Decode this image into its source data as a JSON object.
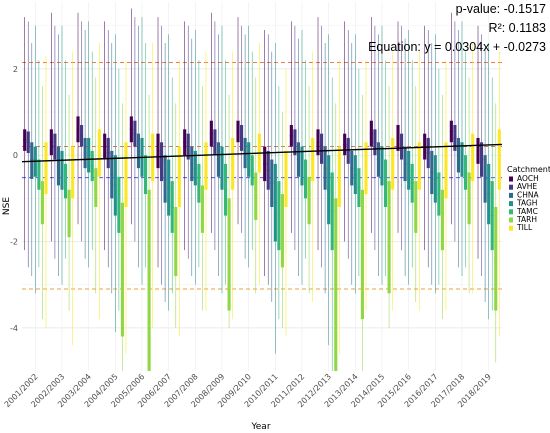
{
  "chart_data": {
    "type": "boxplot",
    "xlabel": "Year",
    "ylabel": "NSE",
    "ylim": [
      -5.0,
      3.55
    ],
    "y_ticks": [
      -4,
      -2,
      0,
      2
    ],
    "grid": true,
    "legend_position": "right",
    "legend_title": "Catchment",
    "categories": [
      "2001/2002",
      "2002/2003",
      "2003/2004",
      "2004/2005",
      "2005/2006",
      "2006/2007",
      "2007/2008",
      "2008/2009",
      "2009/2010",
      "2010/2011",
      "2011/2012",
      "2012/2013",
      "2013/2014",
      "2014/2015",
      "2015/2016",
      "2016/2017",
      "2017/2018",
      "2018/2019"
    ],
    "series": [
      {
        "name": "AOCH",
        "color": "#440154"
      },
      {
        "name": "AVHE",
        "color": "#443983"
      },
      {
        "name": "CHNA",
        "color": "#31688e"
      },
      {
        "name": "TAGH",
        "color": "#21918c"
      },
      {
        "name": "TAMC",
        "color": "#35b779"
      },
      {
        "name": "TARH",
        "color": "#90d743"
      },
      {
        "name": "TILL",
        "color": "#fde725"
      }
    ],
    "stats": {
      "p_value_text": "p-value: -0.1517",
      "r2_text": "R²: 0.1183",
      "equation_text": "Equation: y = 0.0304x + -0.0273"
    },
    "trend_line": {
      "slope": 0.0304,
      "intercept": -0.0273,
      "color": "#000000",
      "y_start": -0.15,
      "y_end": 0.25
    },
    "reference_lines": [
      {
        "y": 2.15,
        "color": "#e8693a",
        "style": "dashed"
      },
      {
        "y": 0.2,
        "color": "#e05a4a",
        "style": "dashed"
      },
      {
        "y": -0.52,
        "color": "#3a3ad8",
        "style": "dashed"
      },
      {
        "y": -3.1,
        "color": "#e8a03a",
        "style": "dashed"
      }
    ],
    "boxes": [
      [
        [
          0.6,
          0.1,
          0.35,
          -2.2,
          3.2
        ],
        [
          0.55,
          0.05,
          0.3,
          -2.6,
          3.1
        ],
        [
          0.3,
          -0.55,
          -0.1,
          -2.8,
          2.6
        ],
        [
          0.2,
          -0.5,
          -0.1,
          -3.2,
          3.0
        ],
        [
          -0.1,
          -0.8,
          -0.45,
          -2.6,
          2.2
        ],
        [
          -0.6,
          -1.6,
          -1.1,
          -3.8,
          1.6
        ],
        [
          0.3,
          -0.9,
          -0.25,
          -4.0,
          2.3
        ]
      ],
      [
        [
          0.6,
          0.0,
          0.3,
          -2.0,
          3.3
        ],
        [
          0.5,
          -0.1,
          0.2,
          -2.4,
          3.0
        ],
        [
          0.2,
          -0.7,
          -0.25,
          -2.8,
          2.8
        ],
        [
          0.1,
          -0.8,
          -0.35,
          -3.0,
          3.0
        ],
        [
          -0.2,
          -1.0,
          -0.6,
          -2.4,
          2.2
        ],
        [
          -0.8,
          -1.9,
          -1.35,
          -3.6,
          1.4
        ],
        [
          0.2,
          -1.0,
          -0.4,
          -4.4,
          2.4
        ]
      ],
      [
        [
          0.9,
          0.3,
          0.6,
          -1.6,
          3.3
        ],
        [
          0.7,
          0.2,
          0.45,
          -2.0,
          3.1
        ],
        [
          0.4,
          -0.3,
          0.05,
          -2.4,
          2.9
        ],
        [
          0.4,
          -0.4,
          0.0,
          -2.6,
          3.1
        ],
        [
          0.1,
          -0.6,
          -0.25,
          -2.2,
          2.4
        ],
        [
          -0.3,
          -1.2,
          -0.75,
          -3.2,
          1.8
        ],
        [
          0.6,
          -0.5,
          0.05,
          -3.8,
          2.6
        ]
      ],
      [
        [
          0.5,
          -0.1,
          0.2,
          -2.2,
          3.1
        ],
        [
          0.4,
          -0.3,
          0.05,
          -2.6,
          2.9
        ],
        [
          0.1,
          -1.0,
          -0.45,
          -3.2,
          2.6
        ],
        [
          0.0,
          -1.4,
          -0.7,
          -4.1,
          2.8
        ],
        [
          -0.5,
          -1.8,
          -1.15,
          -3.6,
          2.0
        ],
        [
          -1.1,
          -4.2,
          -2.6,
          -5.0,
          1.2
        ],
        [
          0.3,
          -1.2,
          -0.45,
          -4.6,
          2.2
        ]
      ],
      [
        [
          0.9,
          0.3,
          0.6,
          -1.6,
          3.4
        ],
        [
          0.8,
          0.2,
          0.5,
          -2.0,
          3.2
        ],
        [
          0.5,
          -0.3,
          0.1,
          -2.6,
          3.0
        ],
        [
          0.4,
          -0.5,
          -0.05,
          -3.0,
          3.2
        ],
        [
          0.0,
          -0.9,
          -0.45,
          -2.6,
          2.6
        ],
        [
          -0.8,
          -5.0,
          -2.9,
          -5.0,
          1.4
        ],
        [
          0.5,
          -0.6,
          -0.05,
          -4.0,
          2.6
        ]
      ],
      [
        [
          0.5,
          -0.3,
          0.1,
          -2.6,
          3.2
        ],
        [
          0.3,
          -0.6,
          -0.15,
          -3.0,
          3.0
        ],
        [
          0.0,
          -1.1,
          -0.55,
          -3.4,
          2.6
        ],
        [
          -0.1,
          -1.4,
          -0.75,
          -3.6,
          2.8
        ],
        [
          -0.6,
          -1.8,
          -1.2,
          -3.2,
          1.8
        ],
        [
          -1.2,
          -2.8,
          -2.0,
          -4.0,
          1.2
        ],
        [
          0.2,
          -1.2,
          -0.5,
          -4.2,
          2.2
        ]
      ],
      [
        [
          0.6,
          0.0,
          0.3,
          -2.2,
          3.1
        ],
        [
          0.5,
          -0.1,
          0.2,
          -2.4,
          3.0
        ],
        [
          0.2,
          -0.6,
          -0.2,
          -2.8,
          2.7
        ],
        [
          0.1,
          -0.7,
          -0.3,
          -3.0,
          2.9
        ],
        [
          -0.2,
          -1.1,
          -0.65,
          -2.6,
          2.2
        ],
        [
          -0.7,
          -1.8,
          -1.25,
          -3.6,
          1.6
        ],
        [
          0.3,
          -0.8,
          -0.25,
          -3.6,
          2.4
        ]
      ],
      [
        [
          0.8,
          0.2,
          0.5,
          -1.8,
          3.3
        ],
        [
          0.6,
          0.0,
          0.3,
          -2.2,
          3.1
        ],
        [
          0.3,
          -0.5,
          -0.1,
          -2.8,
          2.8
        ],
        [
          0.2,
          -0.8,
          -0.3,
          -3.2,
          3.0
        ],
        [
          -0.2,
          -1.4,
          -0.8,
          -3.0,
          2.2
        ],
        [
          -1.0,
          -3.6,
          -2.3,
          -4.0,
          1.4
        ],
        [
          0.4,
          -0.8,
          -0.2,
          -3.8,
          2.4
        ]
      ],
      [
        [
          0.8,
          0.3,
          0.55,
          -1.6,
          3.2
        ],
        [
          0.7,
          0.1,
          0.4,
          -1.8,
          3.0
        ],
        [
          0.4,
          -0.3,
          0.05,
          -2.4,
          2.8
        ],
        [
          0.3,
          -0.5,
          -0.1,
          -2.6,
          3.0
        ],
        [
          0.0,
          -0.7,
          -0.35,
          -2.2,
          2.4
        ],
        [
          -0.4,
          -1.5,
          -0.95,
          -3.2,
          1.8
        ],
        [
          0.5,
          -0.4,
          0.05,
          -3.0,
          2.6
        ]
      ],
      [
        [
          0.2,
          -0.6,
          -0.2,
          -2.8,
          2.9
        ],
        [
          0.1,
          -0.8,
          -0.35,
          -3.0,
          2.8
        ],
        [
          -0.1,
          -1.2,
          -0.65,
          -3.4,
          2.4
        ],
        [
          -0.2,
          -2.0,
          -1.1,
          -4.6,
          2.6
        ],
        [
          -0.6,
          -2.2,
          -1.4,
          -3.8,
          1.6
        ],
        [
          -0.9,
          -2.6,
          -1.75,
          -4.0,
          1.0
        ],
        [
          0.1,
          -1.2,
          -0.55,
          -4.2,
          2.0
        ]
      ],
      [
        [
          0.7,
          0.2,
          0.45,
          -1.8,
          3.1
        ],
        [
          0.6,
          0.0,
          0.3,
          -2.2,
          3.0
        ],
        [
          0.3,
          -0.5,
          -0.1,
          -2.8,
          2.7
        ],
        [
          0.2,
          -0.7,
          -0.25,
          -3.0,
          2.9
        ],
        [
          -0.1,
          -1.0,
          -0.55,
          -2.4,
          2.2
        ],
        [
          -0.5,
          -1.6,
          -1.05,
          -3.2,
          1.6
        ],
        [
          0.4,
          -0.6,
          -0.1,
          -3.4,
          2.4
        ]
      ],
      [
        [
          0.6,
          0.0,
          0.3,
          -2.2,
          3.2
        ],
        [
          0.5,
          -0.2,
          0.15,
          -2.6,
          3.0
        ],
        [
          0.2,
          -0.8,
          -0.3,
          -3.2,
          2.6
        ],
        [
          0.0,
          -1.6,
          -0.8,
          -4.4,
          2.8
        ],
        [
          -0.4,
          -2.2,
          -1.3,
          -5.0,
          1.8
        ],
        [
          -1.0,
          -5.0,
          -3.0,
          -5.0,
          1.2
        ],
        [
          0.2,
          -1.2,
          -0.5,
          -4.6,
          2.2
        ]
      ],
      [
        [
          0.5,
          0.0,
          0.25,
          -2.0,
          3.1
        ],
        [
          0.4,
          -0.2,
          0.1,
          -2.4,
          2.9
        ],
        [
          0.1,
          -0.7,
          -0.3,
          -3.0,
          2.6
        ],
        [
          0.0,
          -0.9,
          -0.45,
          -3.2,
          2.8
        ],
        [
          -0.3,
          -1.2,
          -0.75,
          -2.8,
          2.0
        ],
        [
          -0.8,
          -3.8,
          -2.3,
          -5.0,
          1.4
        ],
        [
          0.3,
          -0.9,
          -0.3,
          -3.6,
          2.2
        ]
      ],
      [
        [
          0.8,
          0.2,
          0.5,
          -1.8,
          3.2
        ],
        [
          0.6,
          0.0,
          0.3,
          -2.2,
          3.0
        ],
        [
          0.3,
          -0.5,
          -0.1,
          -2.8,
          2.8
        ],
        [
          0.2,
          -0.7,
          -0.25,
          -3.0,
          3.0
        ],
        [
          -0.1,
          -1.2,
          -0.65,
          -2.8,
          2.2
        ],
        [
          -0.6,
          -3.2,
          -1.9,
          -4.0,
          1.6
        ],
        [
          0.4,
          -0.8,
          -0.2,
          -3.6,
          2.4
        ]
      ],
      [
        [
          0.7,
          0.1,
          0.4,
          -1.8,
          3.1
        ],
        [
          0.5,
          -0.1,
          0.2,
          -2.2,
          3.0
        ],
        [
          0.2,
          -0.6,
          -0.2,
          -2.8,
          2.7
        ],
        [
          0.1,
          -0.8,
          -0.35,
          -3.0,
          2.9
        ],
        [
          -0.2,
          -1.1,
          -0.65,
          -2.6,
          2.2
        ],
        [
          -0.6,
          -1.8,
          -1.2,
          -3.4,
          1.6
        ],
        [
          0.3,
          -0.8,
          -0.25,
          -3.6,
          2.4
        ]
      ],
      [
        [
          0.5,
          -0.1,
          0.2,
          -2.2,
          3.0
        ],
        [
          0.4,
          -0.3,
          0.05,
          -2.6,
          2.9
        ],
        [
          0.1,
          -0.9,
          -0.4,
          -3.0,
          2.6
        ],
        [
          0.0,
          -1.1,
          -0.55,
          -3.2,
          2.8
        ],
        [
          -0.4,
          -1.4,
          -0.9,
          -3.0,
          2.0
        ],
        [
          -0.8,
          -2.2,
          -1.5,
          -3.8,
          1.4
        ],
        [
          0.3,
          -1.0,
          -0.35,
          -3.6,
          2.2
        ]
      ],
      [
        [
          0.8,
          0.3,
          0.55,
          -1.6,
          3.3
        ],
        [
          0.7,
          0.1,
          0.4,
          -2.0,
          3.1
        ],
        [
          0.4,
          -0.4,
          0.0,
          -2.6,
          2.9
        ],
        [
          0.3,
          -0.5,
          -0.1,
          -2.8,
          3.1
        ],
        [
          0.0,
          -0.8,
          -0.4,
          -2.6,
          2.4
        ],
        [
          -0.4,
          -1.6,
          -1.0,
          -3.2,
          1.8
        ],
        [
          0.5,
          -0.6,
          -0.05,
          -3.2,
          2.6
        ]
      ],
      [
        [
          0.4,
          -0.2,
          0.1,
          -2.4,
          3.0
        ],
        [
          0.3,
          -0.5,
          -0.1,
          -2.8,
          2.8
        ],
        [
          0.0,
          -1.1,
          -0.55,
          -3.4,
          2.5
        ],
        [
          -0.2,
          -1.6,
          -0.9,
          -3.8,
          2.6
        ],
        [
          -0.6,
          -2.2,
          -1.4,
          -3.6,
          1.8
        ],
        [
          -1.2,
          -3.6,
          -2.4,
          -4.8,
          1.2
        ],
        [
          0.6,
          -0.8,
          -0.1,
          -4.2,
          2.4
        ]
      ]
    ]
  }
}
